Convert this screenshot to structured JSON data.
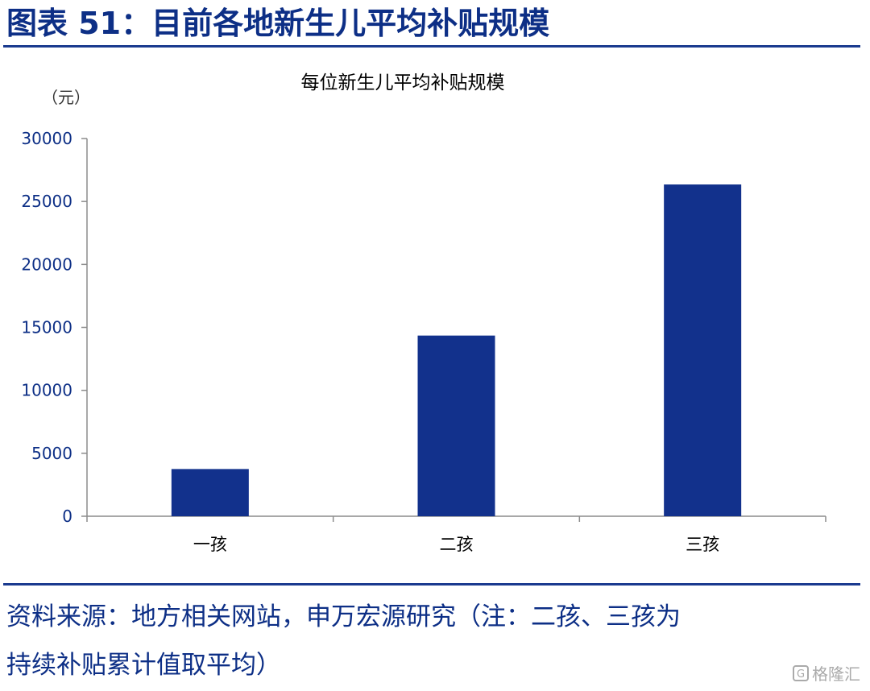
{
  "figure": {
    "title": "图表 51：目前各地新生儿平均补贴规模"
  },
  "source": {
    "line1": "资料来源：地方相关网站，申万宏源研究（注：二孩、三孩为",
    "line2": "持续补贴累计值取平均）"
  },
  "watermark": {
    "logo": "G",
    "text": "格隆汇"
  },
  "colors": {
    "title": "#0d2f86",
    "bar": "#12318c",
    "axis": "#8c8c8c",
    "rule": "#1a3a8f"
  },
  "chart_data": {
    "type": "bar",
    "title": "每位新生儿平均补贴规模",
    "ylabel": "（元）",
    "xlabel": "",
    "categories": [
      "一孩",
      "二孩",
      "三孩"
    ],
    "values": [
      3750,
      14350,
      26350
    ],
    "ylim": [
      0,
      30000
    ],
    "yticks": [
      0,
      5000,
      10000,
      15000,
      20000,
      25000,
      30000
    ],
    "grid": false,
    "legend": "none"
  }
}
